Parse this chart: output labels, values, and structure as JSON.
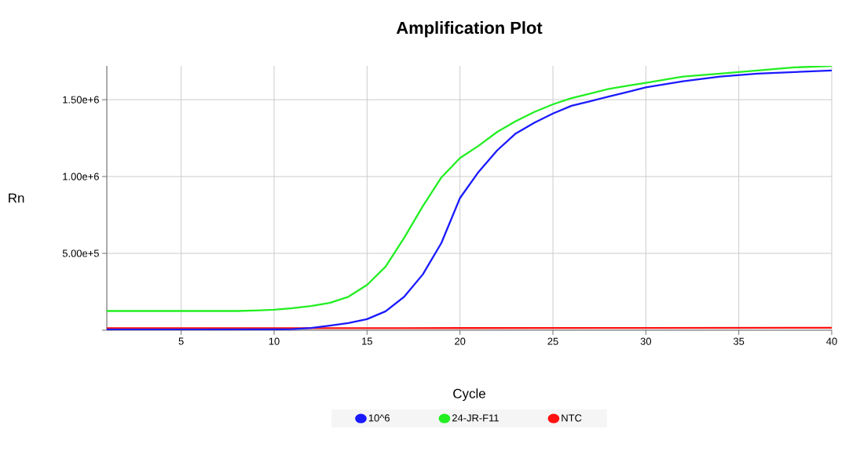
{
  "chart_data": {
    "type": "line",
    "title": "Amplification Plot",
    "xlabel": "Cycle",
    "ylabel": "Rn",
    "xlim": [
      1,
      40
    ],
    "xticks": [
      5,
      10,
      15,
      20,
      25,
      30,
      35,
      40
    ],
    "ylim": [
      0,
      1720000
    ],
    "yticks": [
      {
        "value": 0,
        "label": null
      },
      {
        "value": 500000,
        "label": "5.00e+5"
      },
      {
        "value": 1000000,
        "label": "1.00e+6"
      },
      {
        "value": 1500000,
        "label": "1.50e+6"
      }
    ],
    "grid": true,
    "legend": "bottom",
    "series": [
      {
        "name": "10^6",
        "color": "#1a1aff",
        "x": [
          1,
          5,
          10,
          11,
          12,
          13,
          14,
          15,
          16,
          17,
          18,
          19,
          20,
          21,
          22,
          23,
          24,
          25,
          26,
          27,
          28,
          29,
          30,
          32,
          34,
          36,
          38,
          40
        ],
        "values": [
          4000,
          4000,
          5000,
          7000,
          15000,
          30000,
          47000,
          72000,
          123000,
          218000,
          363000,
          568000,
          860000,
          1030000,
          1170000,
          1280000,
          1350000,
          1410000,
          1460000,
          1490000,
          1520000,
          1550000,
          1580000,
          1620000,
          1650000,
          1670000,
          1680000,
          1690000
        ]
      },
      {
        "name": "24-JR-F11",
        "color": "#22ee22",
        "x": [
          1,
          5,
          8,
          9,
          10,
          11,
          12,
          13,
          14,
          15,
          16,
          17,
          18,
          19,
          20,
          21,
          22,
          23,
          24,
          25,
          26,
          27,
          28,
          29,
          30,
          32,
          34,
          36,
          38,
          40
        ],
        "values": [
          125000,
          125000,
          125000,
          128000,
          133000,
          144000,
          158000,
          178000,
          218000,
          295000,
          414000,
          602000,
          807000,
          994000,
          1120000,
          1200000,
          1290000,
          1360000,
          1420000,
          1470000,
          1510000,
          1540000,
          1570000,
          1590000,
          1610000,
          1650000,
          1670000,
          1690000,
          1710000,
          1720000
        ]
      },
      {
        "name": "NTC",
        "color": "#ff1111",
        "x": [
          1,
          10,
          20,
          30,
          40
        ],
        "values": [
          13000,
          13000,
          14000,
          15000,
          16000
        ]
      }
    ]
  }
}
